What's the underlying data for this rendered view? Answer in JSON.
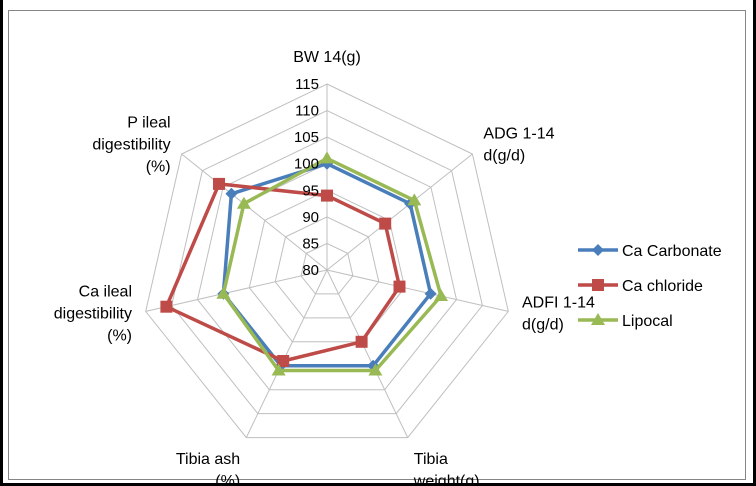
{
  "chart_data": {
    "type": "radar",
    "title": "",
    "axes": [
      {
        "label_lines": [
          "BW 14(g)"
        ]
      },
      {
        "label_lines": [
          "ADG 1-14",
          "d(g/d)"
        ]
      },
      {
        "label_lines": [
          "ADFI 1-14",
          "d(g/d)"
        ]
      },
      {
        "label_lines": [
          "Tibia",
          "weight(g)"
        ]
      },
      {
        "label_lines": [
          "Tibia ash",
          "(%)"
        ]
      },
      {
        "label_lines": [
          "Ca ileal",
          "digestibility",
          "(%)"
        ]
      },
      {
        "label_lines": [
          "P ileal",
          "digestibility",
          "(%)"
        ]
      }
    ],
    "radial_axis": {
      "min": 80,
      "max": 115,
      "step": 5,
      "tick_labels": [
        "80",
        "85",
        "90",
        "95",
        "100",
        "105",
        "110",
        "115"
      ]
    },
    "series": [
      {
        "name": "Ca Carbonate",
        "color": "#4A7EBB",
        "marker": "diamond",
        "values": [
          100,
          100,
          100,
          100,
          100,
          100,
          103
        ]
      },
      {
        "name": "Ca chloride",
        "color": "#BE4B48",
        "marker": "square",
        "values": [
          94,
          94,
          94,
          95,
          99,
          111,
          106
        ]
      },
      {
        "name": "Lipocal",
        "color": "#98B954",
        "marker": "triangle",
        "values": [
          101,
          101,
          102,
          101,
          101,
          100,
          100
        ]
      }
    ],
    "legend_position": "right",
    "grid": true
  }
}
